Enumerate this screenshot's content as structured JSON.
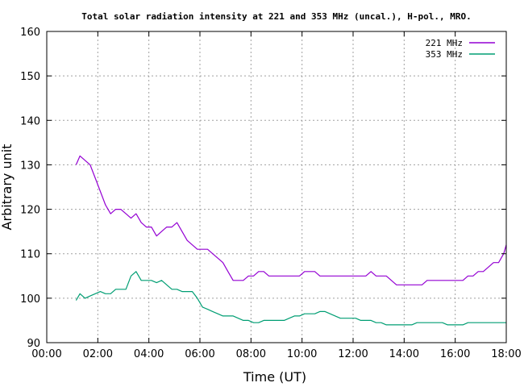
{
  "chart_data": {
    "type": "line",
    "title": "Total solar radiation intensity at 221 and 353 MHz (uncal.), H-pol., MRO.",
    "xlabel": "Time (UT)",
    "ylabel": "Arbitrary unit",
    "xlim": [
      0,
      18
    ],
    "ylim": [
      90,
      160
    ],
    "x_ticks": [
      "00:00",
      "02:00",
      "04:00",
      "06:00",
      "08:00",
      "10:00",
      "12:00",
      "14:00",
      "16:00",
      "18:00"
    ],
    "y_ticks": [
      "90",
      "100",
      "110",
      "120",
      "130",
      "140",
      "150",
      "160"
    ],
    "grid": true,
    "legend_position": "top-right",
    "series": [
      {
        "name": "221 MHz",
        "color": "#9400d3",
        "x": [
          1.15,
          1.3,
          1.5,
          1.7,
          1.9,
          2.1,
          2.3,
          2.5,
          2.7,
          2.9,
          3.1,
          3.3,
          3.5,
          3.7,
          3.9,
          4.1,
          4.3,
          4.5,
          4.7,
          4.9,
          5.1,
          5.3,
          5.5,
          5.7,
          5.9,
          6.1,
          6.3,
          6.5,
          6.7,
          6.9,
          7.1,
          7.3,
          7.5,
          7.7,
          7.9,
          8.1,
          8.3,
          8.5,
          8.7,
          8.9,
          9.1,
          9.3,
          9.5,
          9.7,
          9.9,
          10.1,
          10.3,
          10.5,
          10.7,
          10.9,
          11.1,
          11.3,
          11.5,
          11.7,
          11.9,
          12.1,
          12.3,
          12.5,
          12.7,
          12.9,
          13.1,
          13.3,
          13.5,
          13.7,
          13.9,
          14.1,
          14.3,
          14.5,
          14.7,
          14.9,
          15.1,
          15.3,
          15.5,
          15.7,
          15.9,
          16.1,
          16.3,
          16.5,
          16.7,
          16.9,
          17.1,
          17.3,
          17.5,
          17.7,
          17.9,
          18.0
        ],
        "values": [
          130,
          132,
          131,
          130,
          127,
          124,
          121,
          119,
          120,
          120,
          119,
          118,
          119,
          117,
          116,
          116,
          114,
          115,
          116,
          116,
          117,
          115,
          113,
          112,
          111,
          111,
          111,
          110,
          109,
          108,
          106,
          104,
          104,
          104,
          105,
          105,
          106,
          106,
          105,
          105,
          105,
          105,
          105,
          105,
          105,
          106,
          106,
          106,
          105,
          105,
          105,
          105,
          105,
          105,
          105,
          105,
          105,
          105,
          106,
          105,
          105,
          105,
          104,
          103,
          103,
          103,
          103,
          103,
          103,
          104,
          104,
          104,
          104,
          104,
          104,
          104,
          104,
          105,
          105,
          106,
          106,
          107,
          108,
          108,
          110,
          112
        ]
      },
      {
        "name": "353 MHz",
        "color": "#009e73",
        "x": [
          1.15,
          1.3,
          1.5,
          1.7,
          1.9,
          2.1,
          2.3,
          2.5,
          2.7,
          2.9,
          3.1,
          3.3,
          3.5,
          3.7,
          3.9,
          4.1,
          4.3,
          4.5,
          4.7,
          4.9,
          5.1,
          5.3,
          5.5,
          5.7,
          5.9,
          6.1,
          6.3,
          6.5,
          6.7,
          6.9,
          7.1,
          7.3,
          7.5,
          7.7,
          7.9,
          8.1,
          8.3,
          8.5,
          8.7,
          8.9,
          9.1,
          9.3,
          9.5,
          9.7,
          9.9,
          10.1,
          10.3,
          10.5,
          10.7,
          10.9,
          11.1,
          11.3,
          11.5,
          11.7,
          11.9,
          12.1,
          12.3,
          12.5,
          12.7,
          12.9,
          13.1,
          13.3,
          13.5,
          13.7,
          13.9,
          14.1,
          14.3,
          14.5,
          14.7,
          14.9,
          15.1,
          15.3,
          15.5,
          15.7,
          15.9,
          16.1,
          16.3,
          16.5,
          16.7,
          16.9,
          17.1,
          17.3,
          17.5,
          17.7,
          17.9,
          18.0
        ],
        "values": [
          99.5,
          101,
          100,
          100.5,
          101,
          101.5,
          101,
          101,
          102,
          102,
          102,
          105,
          106,
          104,
          104,
          104,
          103.5,
          104,
          103,
          102,
          102,
          101.5,
          101.5,
          101.5,
          100,
          98,
          97.5,
          97,
          96.5,
          96,
          96,
          96,
          95.5,
          95,
          95,
          94.5,
          94.5,
          95,
          95,
          95,
          95,
          95,
          95.5,
          96,
          96,
          96.5,
          96.5,
          96.5,
          97,
          97,
          96.5,
          96,
          95.5,
          95.5,
          95.5,
          95.5,
          95,
          95,
          95,
          94.5,
          94.5,
          94,
          94,
          94,
          94,
          94,
          94,
          94.5,
          94.5,
          94.5,
          94.5,
          94.5,
          94.5,
          94,
          94,
          94,
          94,
          94.5,
          94.5,
          94.5,
          94.5,
          94.5,
          94.5,
          94.5,
          94.5,
          94.5
        ]
      }
    ]
  }
}
